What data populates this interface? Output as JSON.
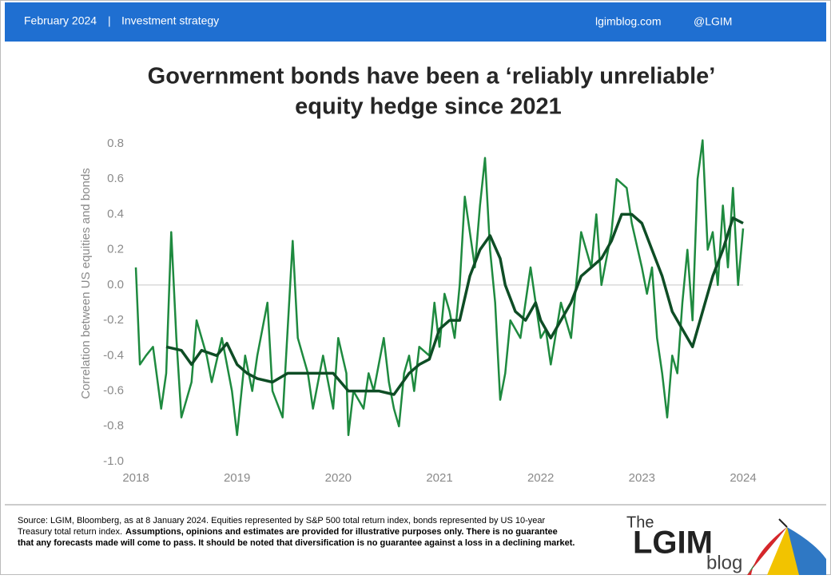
{
  "header": {
    "date": "February 2024",
    "separator": "|",
    "section": "Investment strategy",
    "site": "lgimblog.com",
    "handle": "@LGIM"
  },
  "chart_data": {
    "type": "line",
    "title": [
      "Government bonds have been a ‘reliably unreliable’",
      "equity hedge since 2021"
    ],
    "y_label": "Correlation between US equities and bonds",
    "xlim": [
      2018,
      2024.15
    ],
    "xticks": [
      2018,
      2019,
      2020,
      2021,
      2022,
      2023,
      2024
    ],
    "ylim": [
      -1.0,
      0.8
    ],
    "yticks": [
      0.8,
      0.6,
      0.4,
      0.2,
      {
        "value": 0,
        "label": "0.0"
      },
      -0.2,
      -0.4,
      -0.6,
      -0.8,
      {
        "value": -1.0,
        "label": "-1.0"
      }
    ],
    "series": [
      {
        "color": "#1e8a3f",
        "x": [
          2018.0,
          2018.04,
          2018.1,
          2018.17,
          2018.25,
          2018.3,
          2018.35,
          2018.4,
          2018.45,
          2018.55,
          2018.6,
          2018.7,
          2018.75,
          2018.85,
          2018.95,
          2019.0,
          2019.08,
          2019.15,
          2019.2,
          2019.3,
          2019.35,
          2019.45,
          2019.55,
          2019.6,
          2019.7,
          2019.75,
          2019.85,
          2019.95,
          2020.0,
          2020.08,
          2020.1,
          2020.15,
          2020.25,
          2020.3,
          2020.35,
          2020.45,
          2020.5,
          2020.55,
          2020.6,
          2020.65,
          2020.7,
          2020.75,
          2020.8,
          2020.9,
          2020.95,
          2021.0,
          2021.05,
          2021.1,
          2021.15,
          2021.2,
          2021.25,
          2021.3,
          2021.35,
          2021.4,
          2021.45,
          2021.5,
          2021.55,
          2021.6,
          2021.65,
          2021.7,
          2021.8,
          2021.9,
          2022.0,
          2022.05,
          2022.1,
          2022.2,
          2022.3,
          2022.4,
          2022.5,
          2022.55,
          2022.6,
          2022.7,
          2022.75,
          2022.85,
          2022.9,
          2023.0,
          2023.05,
          2023.1,
          2023.15,
          2023.2,
          2023.25,
          2023.3,
          2023.35,
          2023.4,
          2023.45,
          2023.5,
          2023.55,
          2023.6,
          2023.65,
          2023.7,
          2023.75,
          2023.8,
          2023.85,
          2023.9,
          2023.95,
          2024.0
        ],
        "values": [
          0.1,
          -0.45,
          -0.4,
          -0.35,
          -0.7,
          -0.5,
          0.3,
          -0.3,
          -0.75,
          -0.55,
          -0.2,
          -0.4,
          -0.55,
          -0.3,
          -0.6,
          -0.85,
          -0.4,
          -0.6,
          -0.4,
          -0.1,
          -0.6,
          -0.75,
          0.25,
          -0.3,
          -0.5,
          -0.7,
          -0.4,
          -0.7,
          -0.3,
          -0.5,
          -0.85,
          -0.6,
          -0.7,
          -0.5,
          -0.6,
          -0.3,
          -0.55,
          -0.7,
          -0.8,
          -0.5,
          -0.4,
          -0.6,
          -0.35,
          -0.4,
          -0.1,
          -0.35,
          -0.05,
          -0.15,
          -0.3,
          0.0,
          0.5,
          0.3,
          0.1,
          0.45,
          0.72,
          0.2,
          -0.1,
          -0.65,
          -0.5,
          -0.2,
          -0.3,
          0.1,
          -0.3,
          -0.25,
          -0.45,
          -0.1,
          -0.3,
          0.3,
          0.1,
          0.4,
          0.0,
          0.3,
          0.6,
          0.55,
          0.35,
          0.1,
          -0.05,
          0.1,
          -0.3,
          -0.5,
          -0.75,
          -0.4,
          -0.5,
          -0.1,
          0.2,
          -0.2,
          0.6,
          0.82,
          0.2,
          0.3,
          0.0,
          0.45,
          0.1,
          0.55,
          0.0,
          0.32
        ]
      },
      {
        "color": "#0e4d25",
        "x": [
          2018.3,
          2018.45,
          2018.55,
          2018.65,
          2018.8,
          2018.9,
          2019.0,
          2019.1,
          2019.2,
          2019.35,
          2019.5,
          2019.65,
          2019.8,
          2019.95,
          2020.1,
          2020.25,
          2020.4,
          2020.55,
          2020.7,
          2020.8,
          2020.9,
          2021.0,
          2021.1,
          2021.2,
          2021.3,
          2021.4,
          2021.5,
          2021.6,
          2021.65,
          2021.75,
          2021.85,
          2021.95,
          2022.0,
          2022.1,
          2022.2,
          2022.3,
          2022.4,
          2022.5,
          2022.6,
          2022.7,
          2022.8,
          2022.9,
          2023.0,
          2023.1,
          2023.2,
          2023.3,
          2023.4,
          2023.5,
          2023.6,
          2023.7,
          2023.8,
          2023.9,
          2024.0
        ],
        "values": [
          -0.35,
          -0.37,
          -0.45,
          -0.37,
          -0.4,
          -0.33,
          -0.45,
          -0.5,
          -0.53,
          -0.55,
          -0.5,
          -0.5,
          -0.5,
          -0.5,
          -0.6,
          -0.6,
          -0.6,
          -0.62,
          -0.5,
          -0.45,
          -0.42,
          -0.25,
          -0.2,
          -0.2,
          0.05,
          0.2,
          0.28,
          0.15,
          0.0,
          -0.15,
          -0.2,
          -0.1,
          -0.2,
          -0.3,
          -0.2,
          -0.1,
          0.05,
          0.1,
          0.15,
          0.25,
          0.4,
          0.4,
          0.35,
          0.2,
          0.05,
          -0.15,
          -0.25,
          -0.35,
          -0.15,
          0.05,
          0.2,
          0.38,
          0.35
        ]
      }
    ]
  },
  "footer": {
    "source": "Source: LGIM,  Bloomberg, as at 8 January 2024. Equities represented by S&P 500 total return index, bonds represented by US 10-year",
    "source_2": "Treasury total return index.",
    "disclaimer_1": "Assumptions, opinions  and estimates are provided  for illustrative purposes only.  There is no guarantee",
    "disclaimer_2": "that any forecasts made will come to pass. It should  be noted that diversification is no guarantee against a loss in a declining market."
  },
  "logo": {
    "the": "The",
    "name": "LGIM",
    "blog": "blog"
  }
}
